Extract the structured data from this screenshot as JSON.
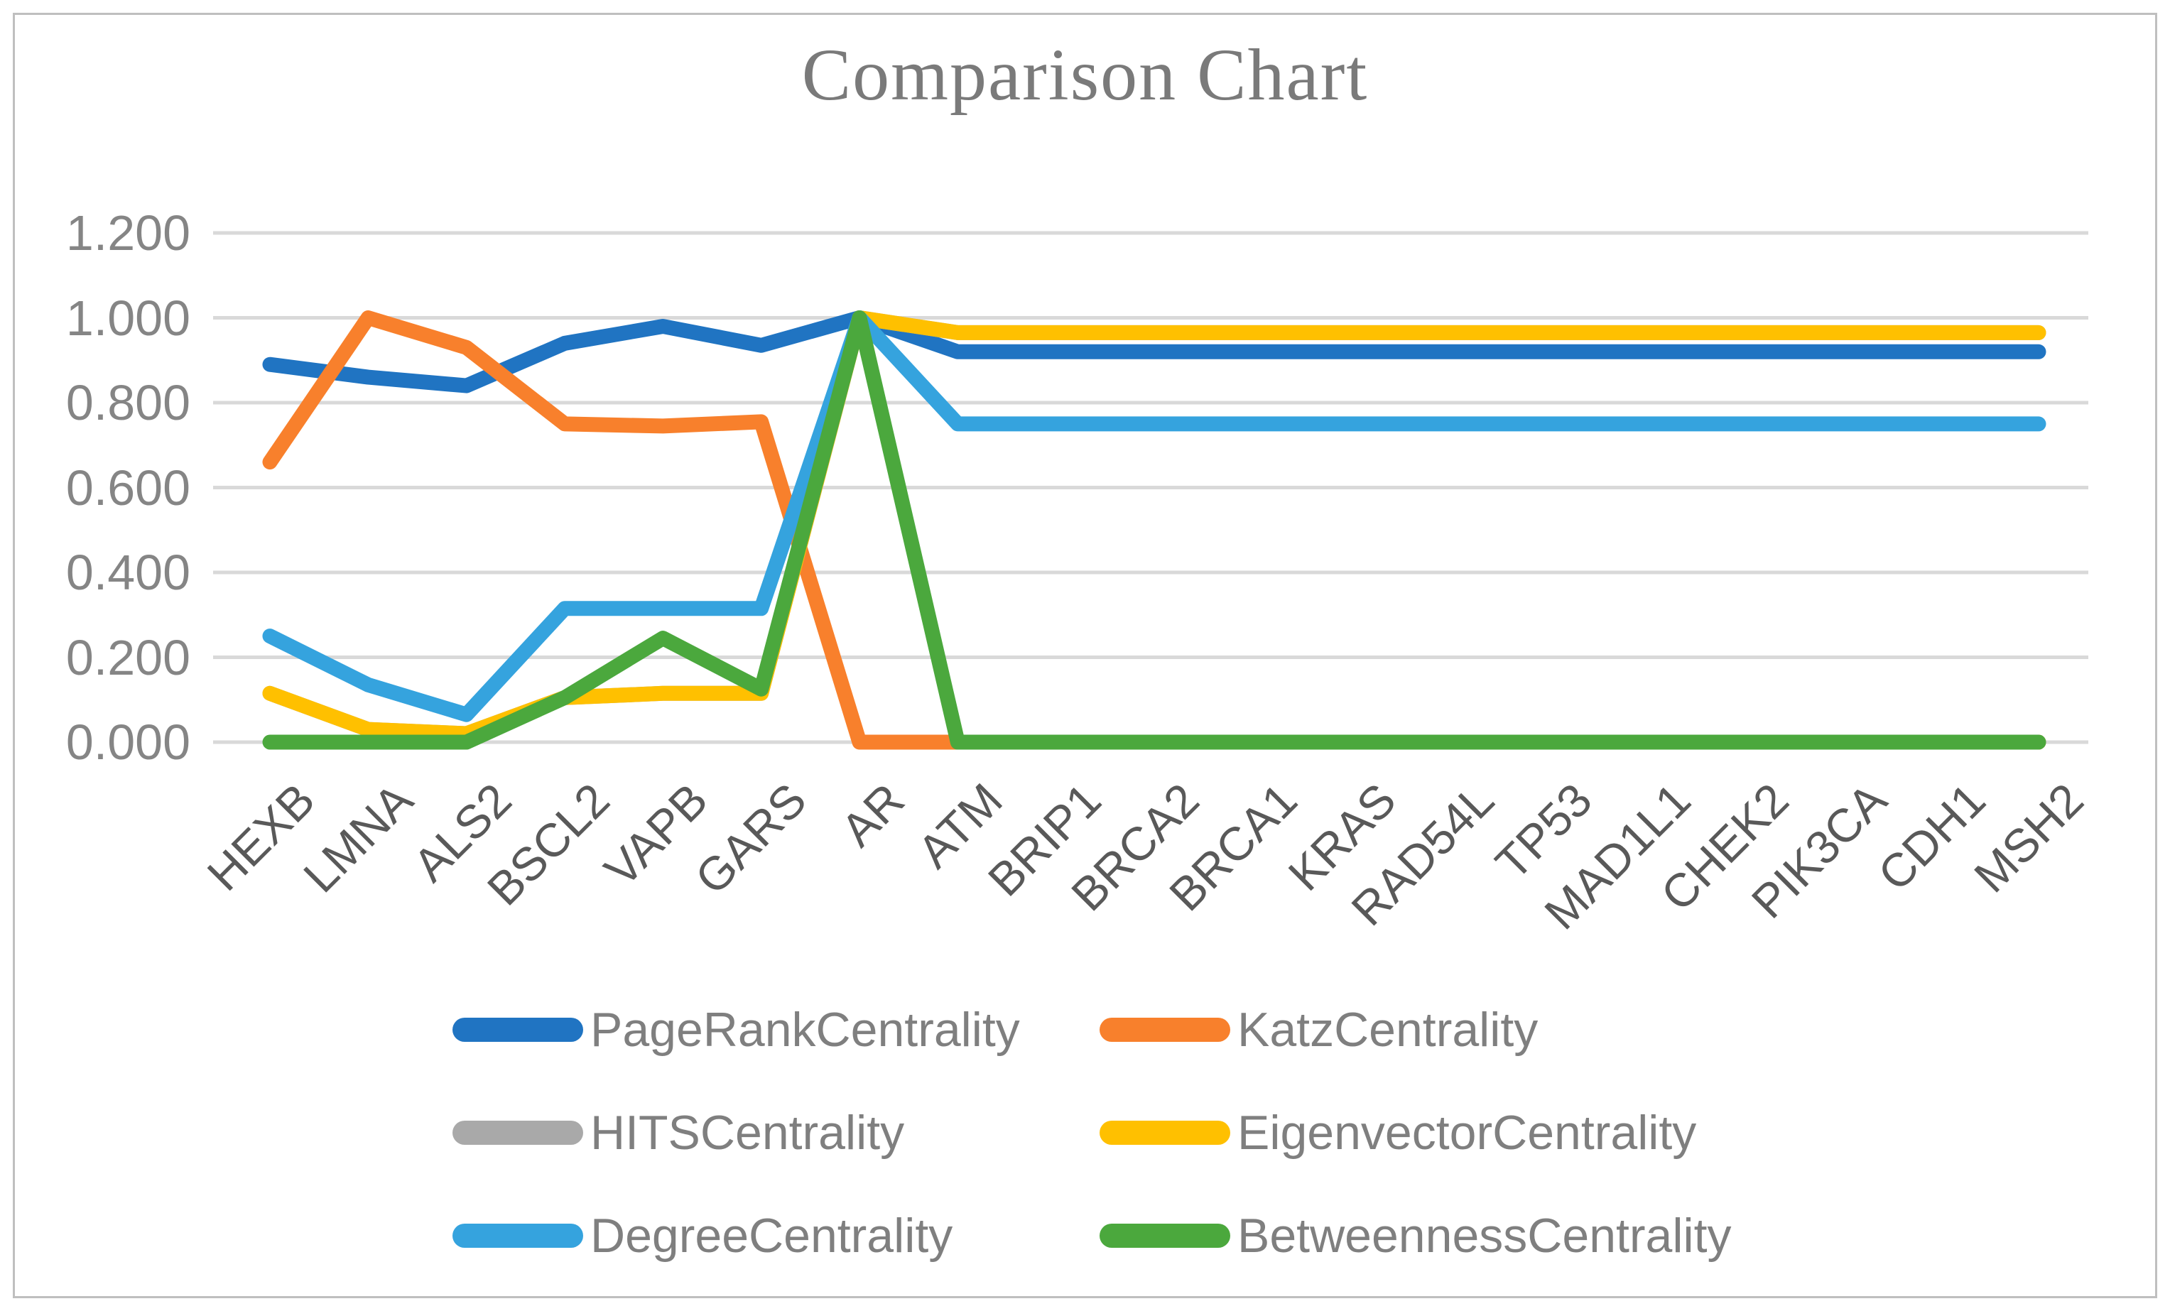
{
  "title": {
    "text": "Comparison Chart",
    "color": "#7A7A7A"
  },
  "frame": {
    "border_color": "#BFBFBF",
    "background": "#FFFFFF"
  },
  "axes": {
    "y_tick_labels": [
      "0.000",
      "0.200",
      "0.400",
      "0.600",
      "0.800",
      "1.000",
      "1.200"
    ],
    "y_tick_color": "#858585",
    "x_tick_color": "#595959",
    "gridline_color": "#D9D9D9"
  },
  "chart_data": {
    "type": "line",
    "title": "Comparison Chart",
    "xlabel": "",
    "ylabel": "",
    "ylim": [
      0,
      1.2
    ],
    "ytick_step": 0.2,
    "grid": "horizontal",
    "legend_position": "bottom-two-columns",
    "categories": [
      "HEXB",
      "LMNA",
      "ALS2",
      "BSCL2",
      "VAPB",
      "GARS",
      "AR",
      "ATM",
      "BRIP1",
      "BRCA2",
      "BRCA1",
      "KRAS",
      "RAD54L",
      "TP53",
      "MAD1L1",
      "CHEK2",
      "PIK3CA",
      "CDH1",
      "MSH2"
    ],
    "series": [
      {
        "name": "PageRankCentrality",
        "color": "#2074C2",
        "values": [
          0.89,
          0.86,
          0.84,
          0.94,
          0.98,
          0.935,
          1.0,
          0.92,
          0.92,
          0.92,
          0.92,
          0.92,
          0.92,
          0.92,
          0.92,
          0.92,
          0.92,
          0.92,
          0.92
        ]
      },
      {
        "name": "KatzCentrality",
        "color": "#F8802C",
        "values": [
          0.66,
          1.0,
          0.93,
          0.75,
          0.745,
          0.755,
          0.0,
          0.0,
          0.0,
          0.0,
          0.0,
          0.0,
          0.0,
          0.0,
          0.0,
          0.0,
          0.0,
          0.0,
          0.0
        ]
      },
      {
        "name": "HITSCentrality",
        "color": "#A9A9A9",
        "values": [
          0.115,
          0.03,
          0.02,
          0.105,
          0.115,
          0.115,
          1.0,
          0.965,
          0.965,
          0.965,
          0.965,
          0.965,
          0.965,
          0.965,
          0.965,
          0.965,
          0.965,
          0.965,
          0.965
        ]
      },
      {
        "name": "EigenvectorCentrality",
        "color": "#FFC000",
        "values": [
          0.115,
          0.03,
          0.02,
          0.105,
          0.115,
          0.115,
          1.0,
          0.965,
          0.965,
          0.965,
          0.965,
          0.965,
          0.965,
          0.965,
          0.965,
          0.965,
          0.965,
          0.965,
          0.965
        ]
      },
      {
        "name": "DegreeCentrality",
        "color": "#35A3DE",
        "values": [
          0.25,
          0.135,
          0.065,
          0.315,
          0.315,
          0.315,
          1.0,
          0.75,
          0.75,
          0.75,
          0.75,
          0.75,
          0.75,
          0.75,
          0.75,
          0.75,
          0.75,
          0.75,
          0.75
        ]
      },
      {
        "name": "BetweennessCentrality",
        "color": "#4BA83D",
        "values": [
          0.0,
          0.0,
          0.0,
          0.105,
          0.245,
          0.125,
          1.0,
          0.0,
          0.0,
          0.0,
          0.0,
          0.0,
          0.0,
          0.0,
          0.0,
          0.0,
          0.0,
          0.0,
          0.0
        ]
      }
    ]
  }
}
